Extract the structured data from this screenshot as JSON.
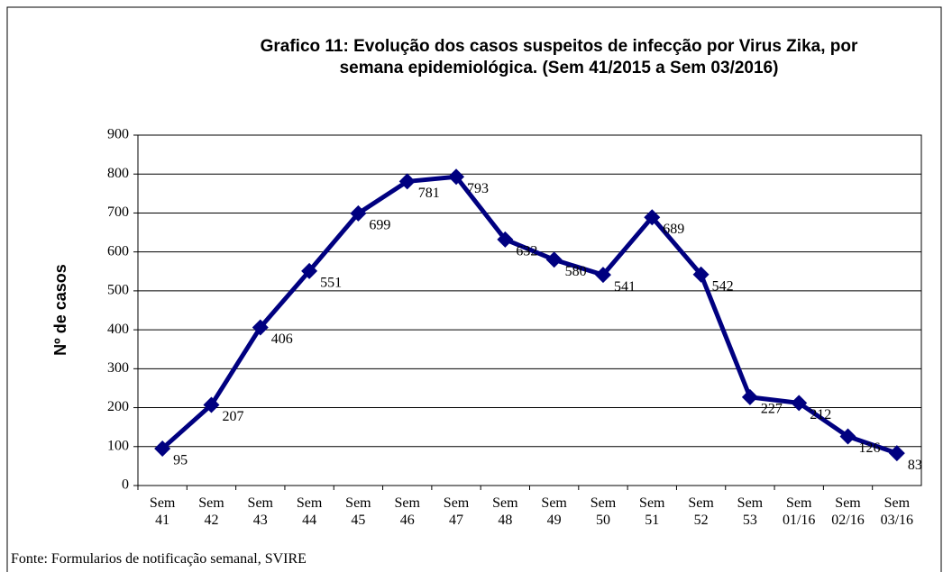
{
  "chart_data": {
    "type": "line",
    "title": "Grafico 11: Evolução dos casos suspeitos de infecção por Virus Zika, por semana epidemiológica. (Sem 41/2015 a Sem 03/2016)",
    "y_label": "Nº de casos",
    "source": "Fonte: Formularios de notificação semanal, SVIRE",
    "categories": [
      "Sem 41",
      "Sem 42",
      "Sem 43",
      "Sem 44",
      "Sem 45",
      "Sem 46",
      "Sem 47",
      "Sem 48",
      "Sem 49",
      "Sem 50",
      "Sem 51",
      "Sem 52",
      "Sem 53",
      "Sem 01/16",
      "Sem 02/16",
      "Sem 03/16"
    ],
    "values": [
      95,
      207,
      406,
      551,
      699,
      781,
      793,
      632,
      580,
      541,
      689,
      542,
      227,
      212,
      126,
      83
    ],
    "color": "#000080",
    "ylim": [
      0,
      900
    ],
    "yticks": [
      0,
      100,
      200,
      300,
      400,
      500,
      600,
      700,
      800,
      900
    ],
    "grid": true
  }
}
